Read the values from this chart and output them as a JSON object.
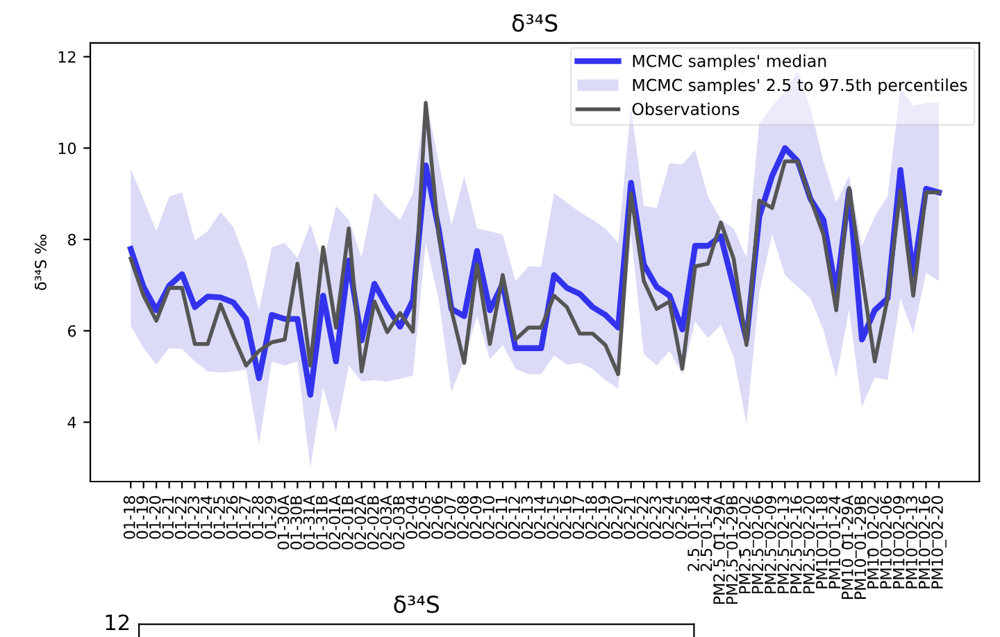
{
  "chart_data": [
    {
      "type": "line",
      "title": "δ³⁴S",
      "ylabel": "δ³⁴S ‰",
      "categories": [
        "01-18",
        "01-19",
        "01-20",
        "01-21",
        "01-22",
        "01-23",
        "01-24",
        "01-25",
        "01-26",
        "01-27",
        "01-28",
        "01-29",
        "01-30A",
        "01-30B",
        "01-31A",
        "01-31B",
        "02-01A",
        "02-01B",
        "02-02A",
        "02-02B",
        "02-03A",
        "02-03B",
        "02-04",
        "02-05",
        "02-06",
        "02-07",
        "02-08",
        "02-09",
        "02-10",
        "02-11",
        "02-12",
        "02-13",
        "02-14",
        "02-15",
        "02-16",
        "02-17",
        "02-18",
        "02-19",
        "02-20",
        "02-21",
        "02-22",
        "02-23",
        "02-24",
        "02-25",
        "2.5_01-18",
        "2.5_01-24",
        "PM2.5_01-29A",
        "PM2.5_01-29B",
        "PM2.5_02-02",
        "PM2.5_02-06",
        "PM2.5_02-09",
        "PM2.5_02-13",
        "PM2.5_02-16",
        "PM2.5_02-20",
        "PM10_01-18",
        "PM10_01-24",
        "PM10_01-29A",
        "PM10_01-29B",
        "PM10_02-02",
        "PM10_02-06",
        "PM10_02-09",
        "PM10_02-13",
        "PM10_02-16",
        "PM10_02-20"
      ],
      "series": [
        {
          "type": "line",
          "name": "MCMC samples' median",
          "color": "#3333ee",
          "values": [
            7.79,
            6.96,
            6.45,
            6.99,
            7.24,
            6.52,
            6.75,
            6.73,
            6.62,
            6.26,
            4.96,
            6.35,
            6.26,
            6.26,
            4.6,
            6.77,
            5.33,
            7.54,
            5.79,
            7.03,
            6.52,
            6.09,
            6.67,
            9.62,
            8.24,
            6.48,
            6.32,
            7.75,
            6.45,
            7.03,
            5.62,
            5.62,
            5.62,
            7.22,
            6.94,
            6.81,
            6.52,
            6.35,
            6.07,
            9.24,
            7.45,
            6.96,
            6.77,
            6.03,
            7.86,
            7.86,
            8.07,
            6.96,
            5.81,
            8.5,
            9.39,
            10.0,
            9.71,
            8.88,
            8.43,
            6.84,
            9.07,
            5.81,
            6.45,
            6.71,
            9.52,
            7.22,
            9.11,
            9.03
          ],
          "lower": [
            6.11,
            5.62,
            5.26,
            5.62,
            5.6,
            5.33,
            5.11,
            5.09,
            5.11,
            5.15,
            3.51,
            5.33,
            5.24,
            5.33,
            3.0,
            4.77,
            3.77,
            5.24,
            4.89,
            4.92,
            4.89,
            4.95,
            5.02,
            7.92,
            6.71,
            4.66,
            5.37,
            6.32,
            5.37,
            5.69,
            5.17,
            5.05,
            5.05,
            5.46,
            5.26,
            5.3,
            5.17,
            4.92,
            4.73,
            8.11,
            5.49,
            5.24,
            5.56,
            5.05,
            6.2,
            5.84,
            6.13,
            5.43,
            3.96,
            6.84,
            8.11,
            7.22,
            6.96,
            6.71,
            6.01,
            4.98,
            6.45,
            4.34,
            4.98,
            4.92,
            6.71,
            5.94,
            7.28,
            7.09
          ],
          "upper": [
            9.54,
            8.88,
            8.18,
            8.94,
            9.03,
            7.98,
            8.18,
            8.6,
            8.27,
            7.54,
            6.45,
            7.83,
            7.92,
            7.6,
            8.34,
            7.47,
            8.73,
            8.43,
            7.6,
            9.03,
            8.69,
            8.43,
            9.01,
            11.11,
            9.71,
            8.3,
            9.39,
            8.24,
            8.18,
            8.11,
            7.09,
            7.41,
            7.41,
            9.01,
            8.81,
            8.6,
            8.43,
            8.24,
            7.92,
            10.92,
            8.73,
            8.69,
            9.67,
            9.64,
            9.96,
            8.94,
            8.43,
            8.24,
            7.6,
            10.54,
            10.92,
            11.24,
            11.69,
            10.86,
            9.71,
            8.81,
            9.39,
            7.86,
            8.5,
            8.94,
            11.31,
            10.92,
            10.99,
            10.99
          ]
        },
        {
          "type": "area",
          "name": "MCMC samples' 2.5 to 97.5th percentiles",
          "color": "#ccccf5",
          "values": [
            null,
            null,
            null,
            null,
            null,
            null,
            null,
            null,
            null,
            null,
            null,
            null,
            null,
            null,
            null,
            null,
            null,
            null,
            null,
            null,
            null,
            null,
            null,
            null,
            null,
            null,
            null,
            null,
            null,
            null,
            null,
            null,
            null,
            null,
            null,
            null,
            null,
            null,
            null,
            null,
            null,
            null,
            null,
            null,
            null,
            null,
            null,
            null,
            null,
            null,
            null,
            null,
            null,
            null,
            null,
            null,
            null,
            null,
            null,
            null,
            null,
            null,
            null,
            null
          ]
        },
        {
          "type": "line",
          "name": "Observations",
          "color": "#555555",
          "values": [
            7.58,
            6.77,
            6.22,
            6.94,
            6.94,
            5.71,
            5.71,
            6.58,
            5.88,
            5.24,
            5.56,
            5.75,
            5.81,
            7.47,
            5.24,
            7.83,
            6.07,
            8.24,
            5.11,
            6.64,
            5.97,
            6.39,
            5.98,
            10.99,
            8.11,
            6.45,
            5.3,
            7.45,
            5.71,
            7.22,
            5.81,
            6.07,
            6.07,
            6.77,
            6.52,
            5.94,
            5.94,
            5.69,
            5.05,
            9.01,
            7.09,
            6.48,
            6.64,
            5.17,
            7.41,
            7.47,
            8.37,
            7.58,
            5.69,
            8.85,
            8.69,
            9.71,
            9.71,
            8.88,
            8.11,
            6.45,
            9.13,
            7.22,
            5.33,
            6.71,
            9.07,
            6.77,
            9.03,
            9.03
          ]
        }
      ],
      "ylim": [
        2.7,
        12.3
      ],
      "yticks": [
        4,
        6,
        8,
        10,
        12
      ],
      "legend": "top right",
      "grid": false
    },
    {
      "type": "other",
      "title": "δ³⁴S",
      "annotations": [
        "12"
      ]
    }
  ]
}
